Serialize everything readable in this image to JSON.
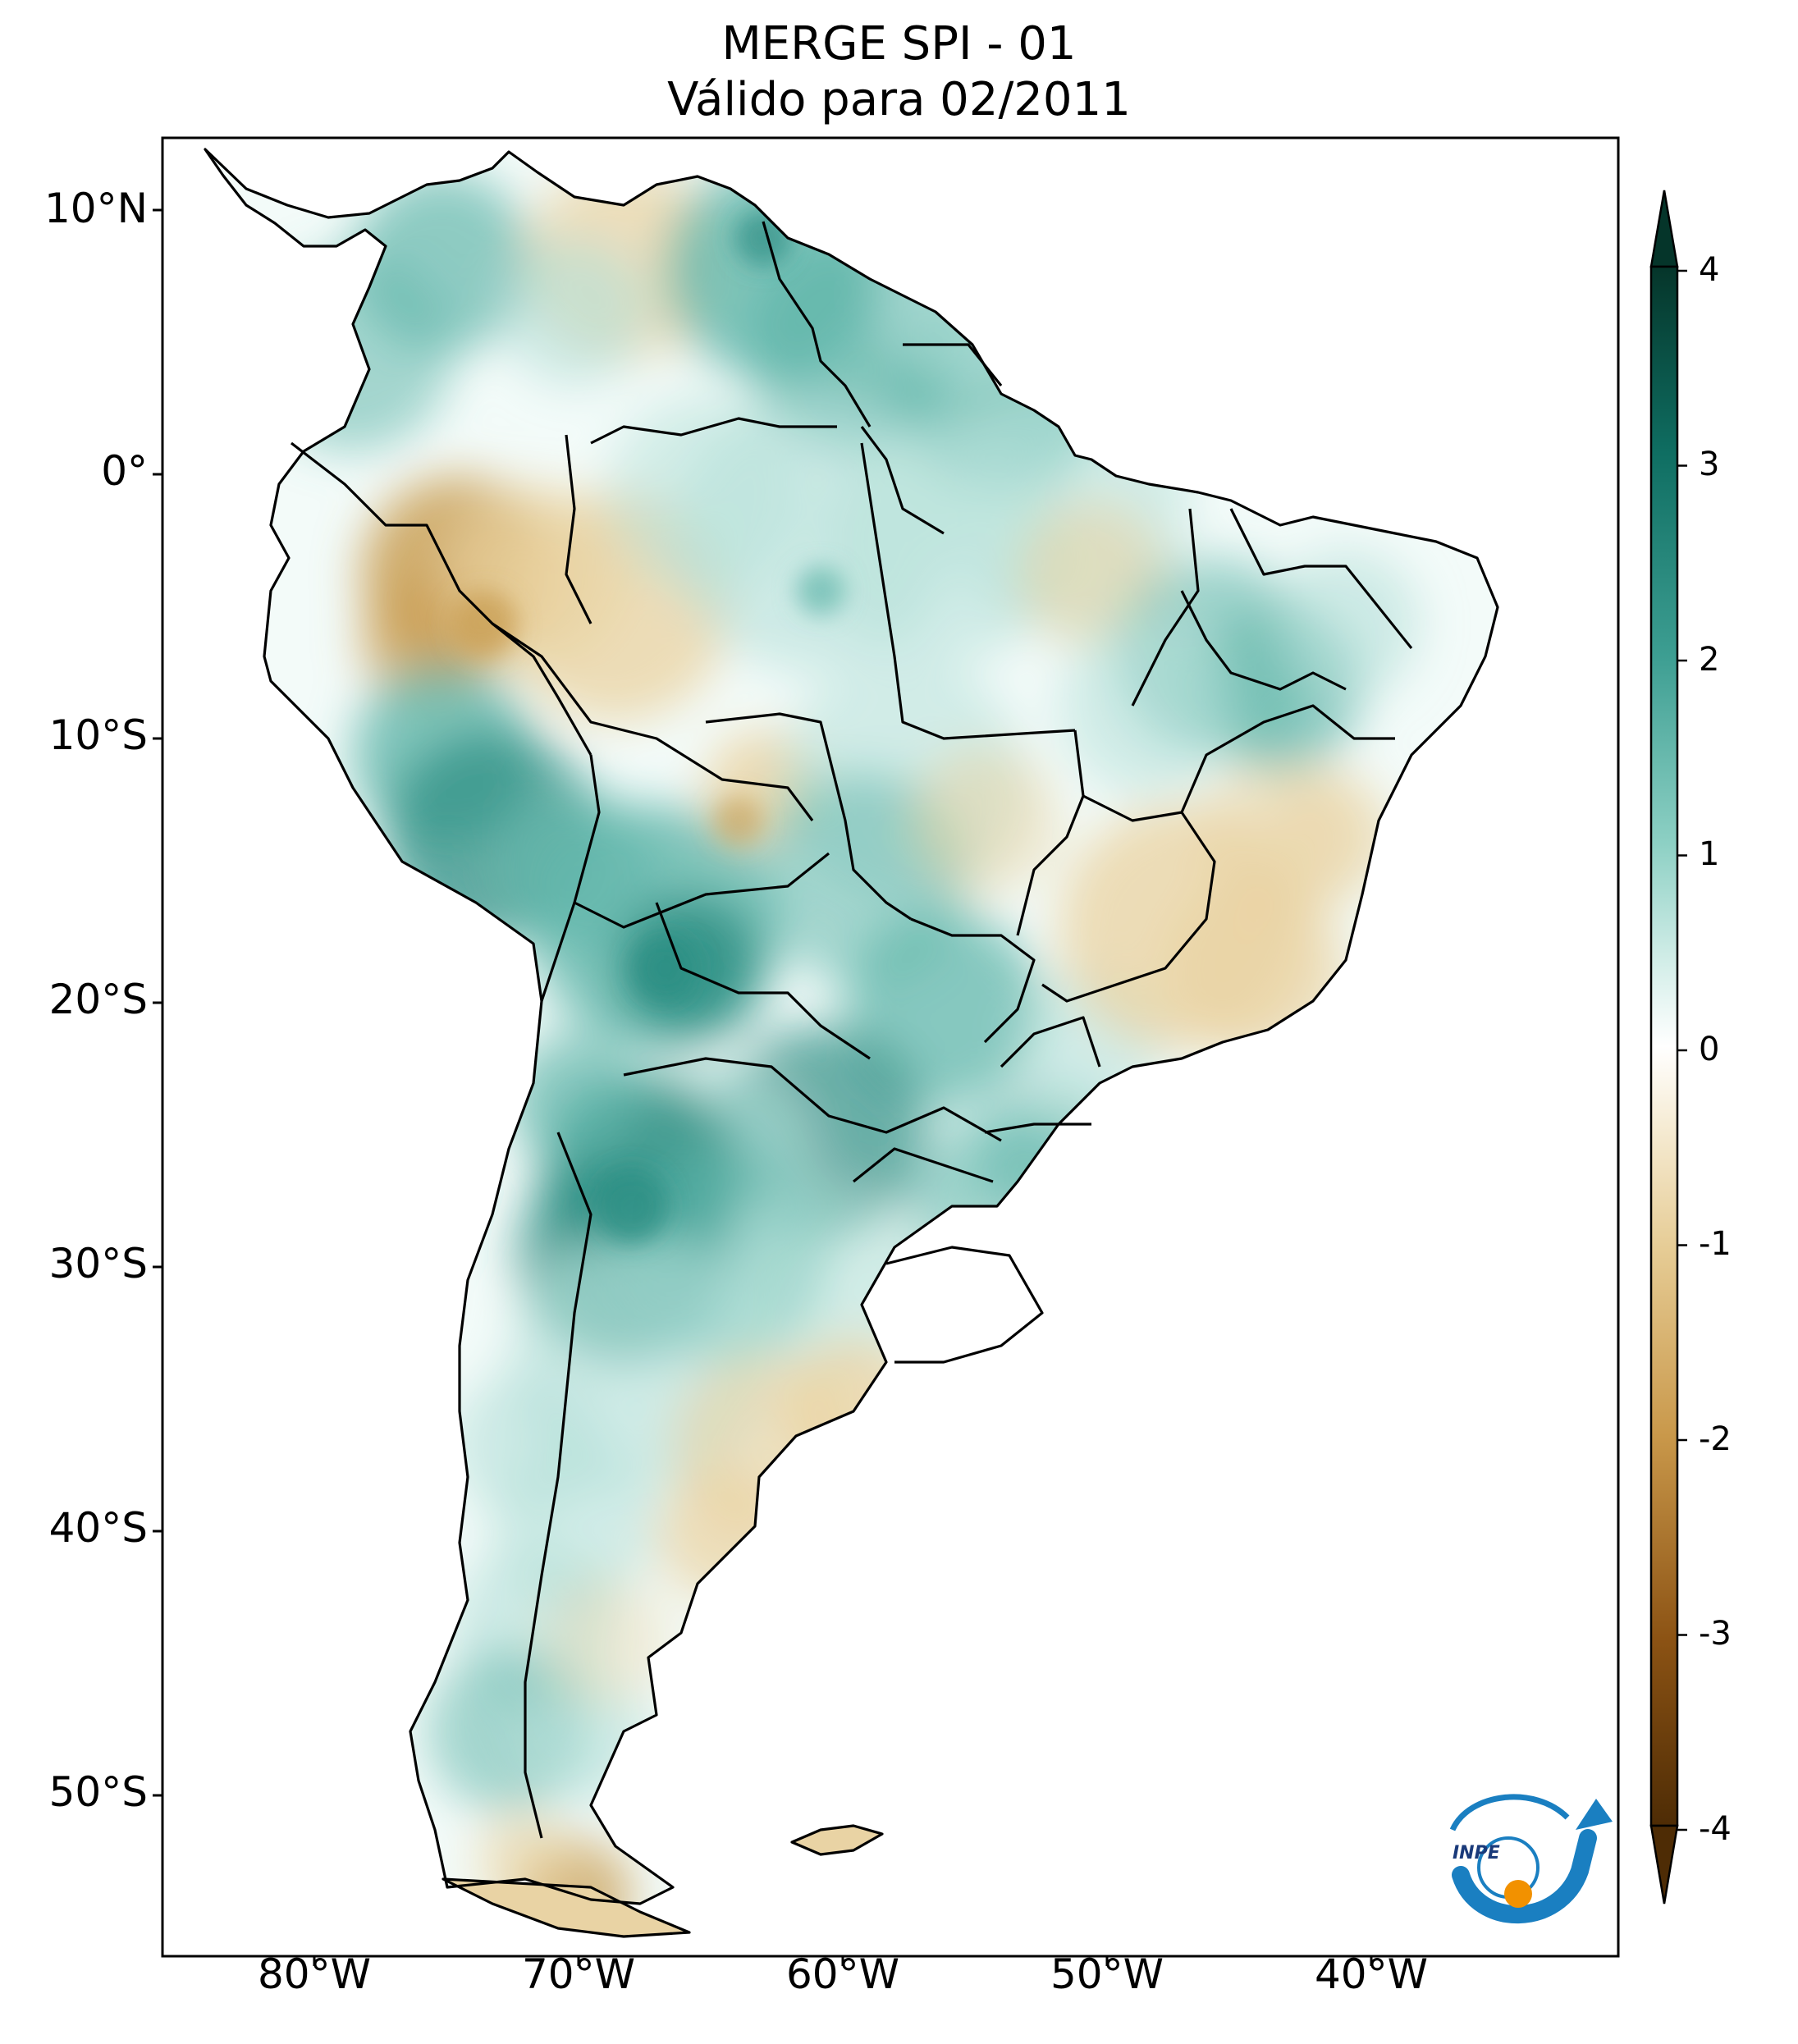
{
  "title": {
    "line1": "MERGE   SPI - 01",
    "line2": "Válido para 02/2011"
  },
  "lat_labels": [
    "10°N",
    "0°",
    "10°S",
    "20°S",
    "30°S",
    "40°S",
    "50°S"
  ],
  "lon_labels": [
    "80°W",
    "70°W",
    "60°W",
    "50°W",
    "40°W"
  ],
  "colorbar": {
    "ticks": [
      "4",
      "3",
      "2",
      "1",
      "0",
      "-1",
      "-2",
      "-3",
      "-4"
    ],
    "colors": [
      "#05352a",
      "#0f6e62",
      "#3d9e92",
      "#8dd0c4",
      "#d6efea",
      "#ffffff",
      "#f1e2c0",
      "#dfc081",
      "#c28f3d",
      "#8c5314",
      "#4e2c05"
    ]
  },
  "logo": {
    "text": "INPE"
  },
  "palette": {
    "teal_strong": "#2d8f84",
    "teal_mid": "#62b7ab",
    "teal_light": "#b4e0d8",
    "brown_mid": "#caa056",
    "brown_light": "#ead2a0",
    "logo_blue": "#1a7fc1",
    "logo_orange": "#f29100"
  }
}
